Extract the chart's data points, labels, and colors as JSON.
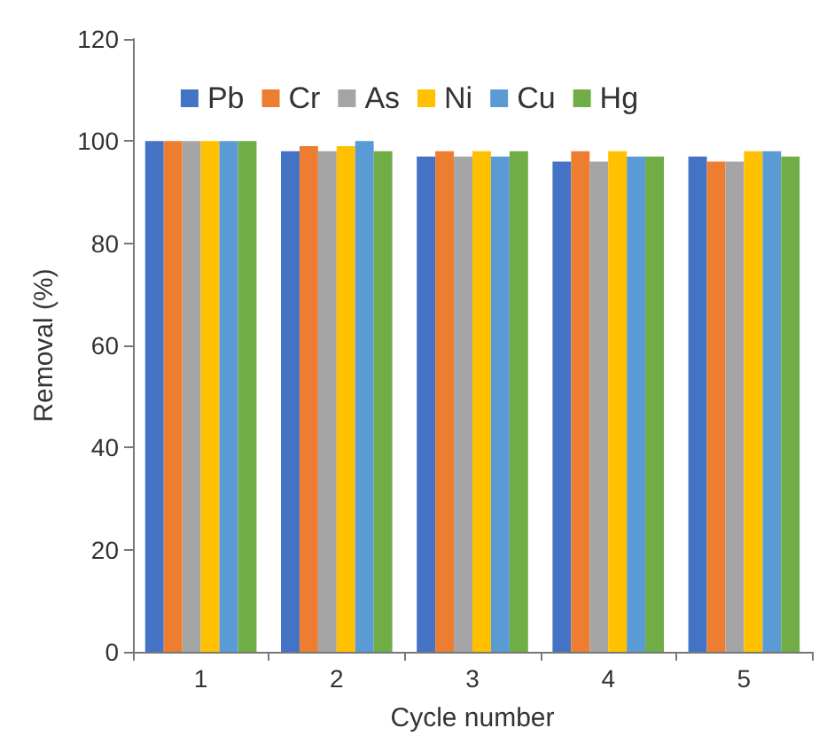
{
  "chart_data": {
    "type": "bar",
    "xlabel": "Cycle number",
    "ylabel": "Removal (%)",
    "categories": [
      "1",
      "2",
      "3",
      "4",
      "5"
    ],
    "series": [
      {
        "name": "Pb",
        "color": "#4472c4",
        "values": [
          100,
          98,
          97,
          96,
          97
        ]
      },
      {
        "name": "Cr",
        "color": "#ed7d31",
        "values": [
          100,
          99,
          98,
          98,
          96
        ]
      },
      {
        "name": "As",
        "color": "#a5a5a5",
        "values": [
          100,
          98,
          97,
          96,
          96
        ]
      },
      {
        "name": "Ni",
        "color": "#ffc000",
        "values": [
          100,
          99,
          98,
          98,
          98
        ]
      },
      {
        "name": "Cu",
        "color": "#5b9bd5",
        "values": [
          100,
          100,
          97,
          97,
          98
        ]
      },
      {
        "name": "Hg",
        "color": "#70ad47",
        "values": [
          100,
          98,
          98,
          97,
          97
        ]
      }
    ],
    "ylim": [
      0,
      120
    ],
    "yticks": [
      0,
      20,
      40,
      60,
      80,
      100,
      120
    ],
    "grid": false,
    "legend": "top"
  }
}
